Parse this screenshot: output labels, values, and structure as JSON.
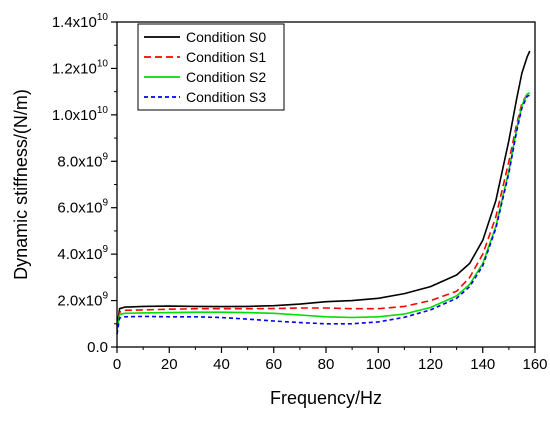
{
  "chart_data": {
    "type": "line",
    "xlabel": "Frequency/Hz",
    "ylabel": "Dynamic stiffness/(N/m)",
    "xlim": [
      0,
      160
    ],
    "ylim": [
      0,
      14000000000
    ],
    "xticks": [
      0,
      20,
      40,
      60,
      80,
      100,
      120,
      140,
      160
    ],
    "yticks": [
      {
        "value": 0,
        "mantissa": "0.0",
        "exp": ""
      },
      {
        "value": 2000000000,
        "mantissa": "2.0x10",
        "exp": "9"
      },
      {
        "value": 4000000000,
        "mantissa": "4.0x10",
        "exp": "9"
      },
      {
        "value": 6000000000,
        "mantissa": "6.0x10",
        "exp": "9"
      },
      {
        "value": 8000000000,
        "mantissa": "8.0x10",
        "exp": "9"
      },
      {
        "value": 10000000000,
        "mantissa": "1.0x10",
        "exp": "10"
      },
      {
        "value": 12000000000,
        "mantissa": "1.2x10",
        "exp": "10"
      },
      {
        "value": 14000000000,
        "mantissa": "1.4x10",
        "exp": "10"
      }
    ],
    "grid": false,
    "legend_position": "top-left",
    "series": [
      {
        "name": "Condition S0",
        "color": "#000000",
        "dash": "solid",
        "x": [
          0,
          1,
          3,
          10,
          20,
          30,
          40,
          50,
          60,
          70,
          80,
          90,
          100,
          110,
          120,
          130,
          135,
          140,
          145,
          150,
          153,
          155,
          157,
          158
        ],
        "y": [
          900000000.0,
          1650000000.0,
          1720000000.0,
          1750000000.0,
          1760000000.0,
          1750000000.0,
          1740000000.0,
          1750000000.0,
          1780000000.0,
          1850000000.0,
          1950000000.0,
          2000000000.0,
          2100000000.0,
          2300000000.0,
          2600000000.0,
          3100000000.0,
          3600000000.0,
          4600000000.0,
          6300000000.0,
          8900000000.0,
          10700000000.0,
          11800000000.0,
          12500000000.0,
          12750000000.0
        ]
      },
      {
        "name": "Condition S1",
        "color": "#ff0000",
        "dash": "dashed",
        "x": [
          0,
          1,
          3,
          10,
          20,
          30,
          40,
          50,
          60,
          70,
          80,
          90,
          100,
          110,
          120,
          130,
          135,
          140,
          145,
          150,
          153,
          155,
          157,
          158
        ],
        "y": [
          800000000.0,
          1500000000.0,
          1580000000.0,
          1600000000.0,
          1630000000.0,
          1650000000.0,
          1650000000.0,
          1650000000.0,
          1660000000.0,
          1680000000.0,
          1680000000.0,
          1650000000.0,
          1650000000.0,
          1750000000.0,
          2000000000.0,
          2400000000.0,
          3000000000.0,
          4000000000.0,
          5600000000.0,
          8000000000.0,
          9600000000.0,
          10500000000.0,
          10900000000.0,
          10950000000.0
        ]
      },
      {
        "name": "Condition S2",
        "color": "#00dd00",
        "dash": "solid",
        "x": [
          0,
          1,
          3,
          10,
          20,
          30,
          40,
          50,
          60,
          70,
          80,
          90,
          100,
          110,
          120,
          130,
          135,
          140,
          145,
          150,
          153,
          155,
          157,
          158
        ],
        "y": [
          700000000.0,
          1400000000.0,
          1450000000.0,
          1470000000.0,
          1480000000.0,
          1500000000.0,
          1500000000.0,
          1480000000.0,
          1450000000.0,
          1380000000.0,
          1300000000.0,
          1270000000.0,
          1300000000.0,
          1420000000.0,
          1700000000.0,
          2200000000.0,
          2700000000.0,
          3600000000.0,
          5200000000.0,
          7600000000.0,
          9400000000.0,
          10400000000.0,
          10900000000.0,
          10950000000.0
        ]
      },
      {
        "name": "Condition S3",
        "color": "#0000ee",
        "dash": "shortdash",
        "x": [
          0,
          1,
          3,
          10,
          20,
          30,
          40,
          50,
          60,
          70,
          80,
          90,
          100,
          110,
          120,
          130,
          135,
          140,
          145,
          150,
          153,
          155,
          157,
          158
        ],
        "y": [
          550000000.0,
          1250000000.0,
          1300000000.0,
          1320000000.0,
          1300000000.0,
          1300000000.0,
          1270000000.0,
          1200000000.0,
          1120000000.0,
          1050000000.0,
          1000000000.0,
          1000000000.0,
          1080000000.0,
          1280000000.0,
          1600000000.0,
          2100000000.0,
          2600000000.0,
          3500000000.0,
          5100000000.0,
          7500000000.0,
          9300000000.0,
          10300000000.0,
          10800000000.0,
          10850000000.0
        ]
      }
    ]
  }
}
